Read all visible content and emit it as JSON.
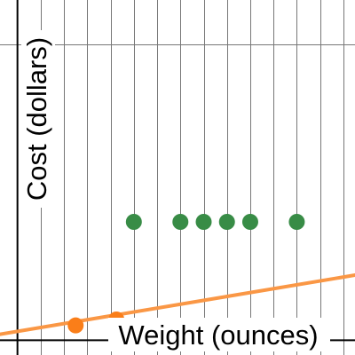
{
  "chart_data": {
    "type": "scatter",
    "xlabel": "Weight (ounces)",
    "ylabel": "Cost (dollars)",
    "xlim": [
      -0.75,
      14.5
    ],
    "ylim": [
      -0.5,
      11.5
    ],
    "grid": {
      "vertical": true,
      "horizontal": true,
      "vertical_step": 1,
      "horizontal_step": 10
    },
    "series": [
      {
        "kind": "points",
        "color": "#388c46",
        "x": [
          5,
          7,
          8,
          9,
          10,
          12
        ],
        "y": [
          4,
          4,
          4,
          4,
          4,
          4
        ]
      },
      {
        "kind": "points",
        "color": "#fa7e19",
        "x": [
          2.5,
          4.25
        ],
        "y": [
          0.5,
          0.7
        ]
      },
      {
        "kind": "line",
        "color": "#fa9745",
        "x": [
          -0.75,
          14.5
        ],
        "y": [
          0.2,
          2.2
        ]
      }
    ]
  }
}
